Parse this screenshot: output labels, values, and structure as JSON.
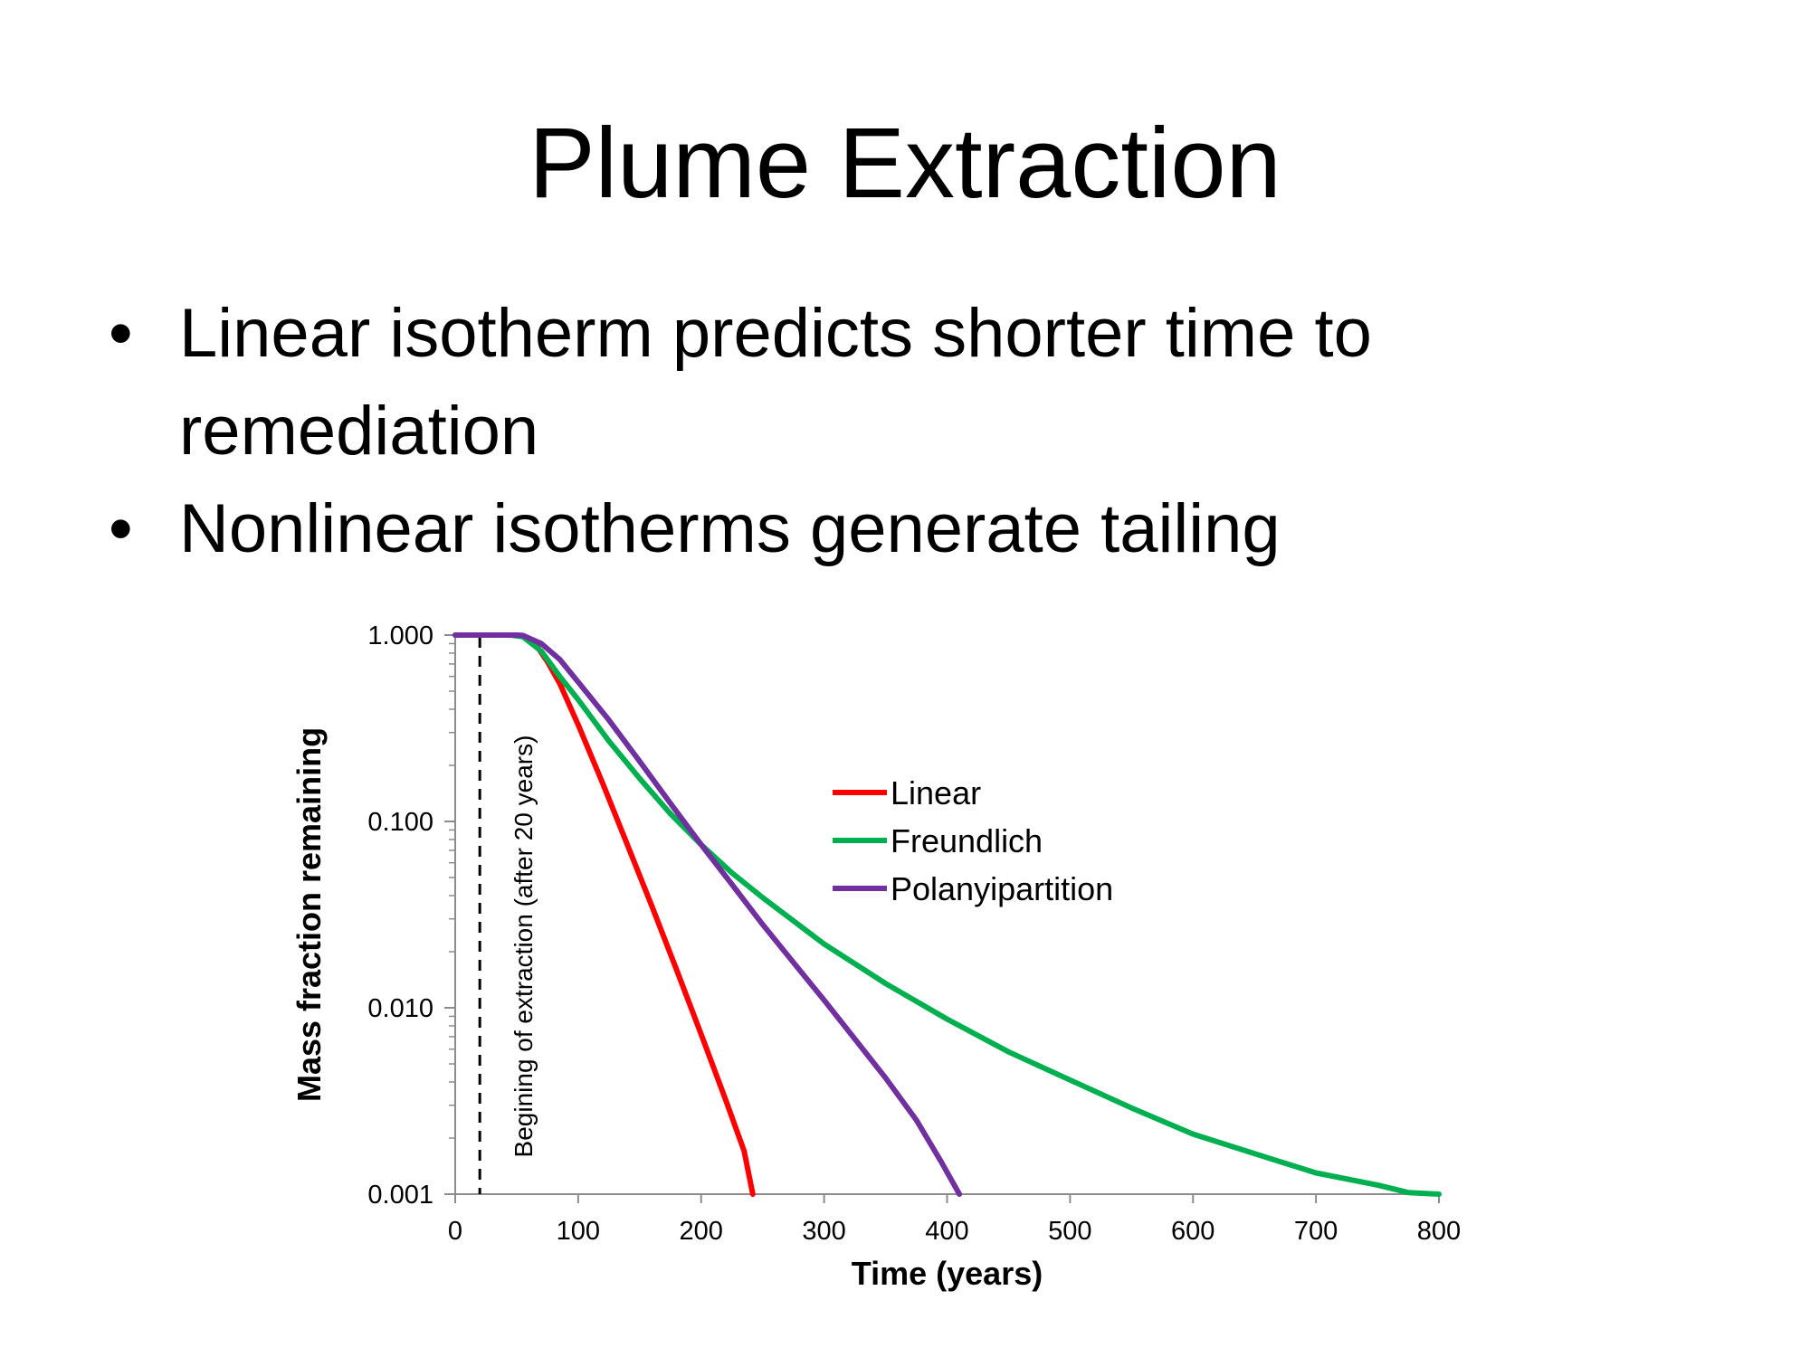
{
  "slide": {
    "title": "Plume Extraction",
    "bullets": [
      "Linear isotherm predicts shorter time to remediation",
      "Nonlinear isotherms generate tailing"
    ]
  },
  "chart_data": {
    "type": "line",
    "title": "",
    "xlabel": "Time (years)",
    "ylabel": "Mass fraction remaining",
    "xlim": [
      0,
      800
    ],
    "ylim": [
      0.001,
      1
    ],
    "yscale": "log",
    "x_ticks": [
      0,
      100,
      200,
      300,
      400,
      500,
      600,
      700,
      800
    ],
    "y_ticks": [
      0.001,
      0.01,
      0.1,
      1
    ],
    "y_tick_labels": [
      "0.001",
      "0.010",
      "0.100",
      "1.000"
    ],
    "legend_position": "center",
    "annotation": {
      "text": "Begining of extraction (after 20 years)",
      "x": 20
    },
    "series": [
      {
        "name": "Linear",
        "color": "#ff0000",
        "points": [
          [
            0,
            1
          ],
          [
            40,
            1
          ],
          [
            50,
            1
          ],
          [
            55,
            0.98
          ],
          [
            65,
            0.9
          ],
          [
            75,
            0.72
          ],
          [
            85,
            0.55
          ],
          [
            100,
            0.33
          ],
          [
            120,
            0.16
          ],
          [
            140,
            0.075
          ],
          [
            160,
            0.035
          ],
          [
            180,
            0.016
          ],
          [
            200,
            0.0072
          ],
          [
            220,
            0.0032
          ],
          [
            235,
            0.0017
          ],
          [
            242,
            0.001
          ]
        ]
      },
      {
        "name": "Freundlich",
        "color": "#00b050",
        "points": [
          [
            0,
            1
          ],
          [
            45,
            1
          ],
          [
            55,
            0.98
          ],
          [
            70,
            0.82
          ],
          [
            85,
            0.6
          ],
          [
            100,
            0.45
          ],
          [
            125,
            0.27
          ],
          [
            150,
            0.17
          ],
          [
            175,
            0.11
          ],
          [
            200,
            0.075
          ],
          [
            225,
            0.053
          ],
          [
            250,
            0.039
          ],
          [
            300,
            0.022
          ],
          [
            350,
            0.0135
          ],
          [
            400,
            0.0087
          ],
          [
            450,
            0.0058
          ],
          [
            500,
            0.0041
          ],
          [
            550,
            0.0029
          ],
          [
            600,
            0.0021
          ],
          [
            650,
            0.00165
          ],
          [
            700,
            0.0013
          ],
          [
            750,
            0.00112
          ],
          [
            775,
            0.00102
          ],
          [
            800,
            0.001
          ]
        ]
      },
      {
        "name": "Polanyipartition",
        "color": "#7030a0",
        "points": [
          [
            0,
            1
          ],
          [
            50,
            1
          ],
          [
            55,
            0.995
          ],
          [
            70,
            0.9
          ],
          [
            85,
            0.74
          ],
          [
            100,
            0.56
          ],
          [
            125,
            0.35
          ],
          [
            150,
            0.21
          ],
          [
            175,
            0.125
          ],
          [
            200,
            0.075
          ],
          [
            225,
            0.046
          ],
          [
            250,
            0.028
          ],
          [
            275,
            0.0175
          ],
          [
            300,
            0.011
          ],
          [
            325,
            0.0068
          ],
          [
            350,
            0.0042
          ],
          [
            375,
            0.0025
          ],
          [
            395,
            0.0015
          ],
          [
            410,
            0.001
          ]
        ]
      }
    ]
  }
}
